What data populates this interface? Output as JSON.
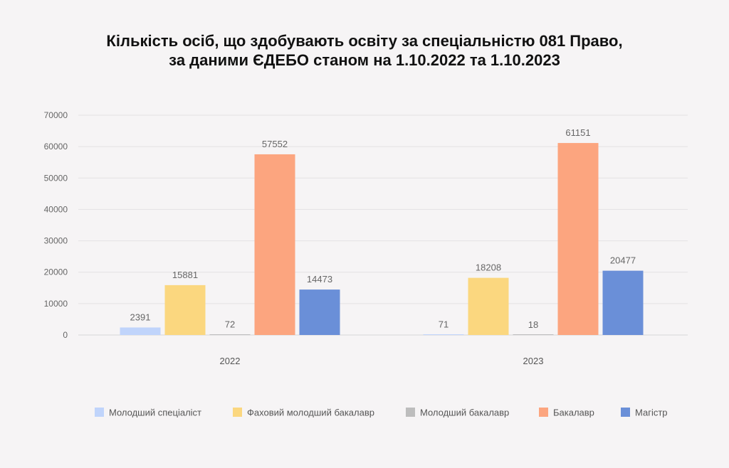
{
  "chart_data": {
    "type": "bar",
    "title": [
      "Кількість осіб, що здобувають освіту за спеціальністю 081 Право,",
      "за даними ЄДЕБО станом на 1.10.2022 та 1.10.2023"
    ],
    "categories": [
      "2022",
      "2023"
    ],
    "series": [
      {
        "name": "Молодший спеціаліст",
        "values": [
          2391,
          71
        ],
        "color": "#c0d4fb"
      },
      {
        "name": "Фаховий молодший бакалавр",
        "values": [
          15881,
          18208
        ],
        "color": "#fbd77f"
      },
      {
        "name": "Молодший бакалавр",
        "values": [
          72,
          18
        ],
        "color": "#bdbdbd"
      },
      {
        "name": "Бакалавр",
        "values": [
          57552,
          61151
        ],
        "color": "#fca57f"
      },
      {
        "name": "Магістр",
        "values": [
          14473,
          20477
        ],
        "color": "#6a8fd8"
      }
    ],
    "y_ticks": [
      0,
      10000,
      20000,
      30000,
      40000,
      50000,
      60000,
      70000
    ],
    "ylim": [
      0,
      70000
    ],
    "grid": true,
    "legend_position": "bottom",
    "xlabel": "",
    "ylabel": ""
  }
}
